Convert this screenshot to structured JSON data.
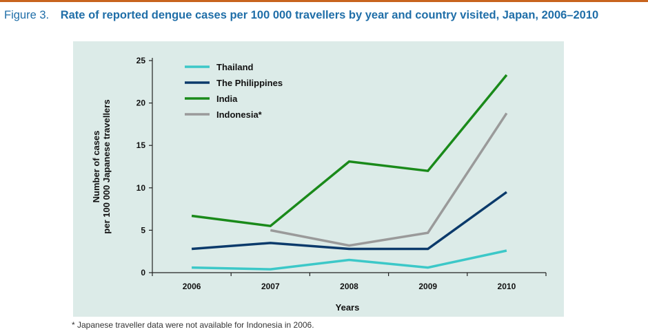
{
  "figure": {
    "label": "Figure 3.",
    "title": "Rate of reported dengue cases per 100 000 travellers by year and country visited, Japan, 2006–2010"
  },
  "footnote": "* Japanese traveller data were not available for Indonesia in 2006.",
  "colors": {
    "accent_rule": "#c8641e",
    "title": "#1f6ea8",
    "plot_background": "#dcebe8"
  },
  "chart_data": {
    "type": "line",
    "title": "Rate of reported dengue cases per 100 000 travellers by year and country visited, Japan, 2006–2010",
    "xlabel": "Years",
    "ylabel": [
      "Number of cases",
      "per 100 000 Japanese travellers"
    ],
    "categories": [
      "2006",
      "2007",
      "2008",
      "2009",
      "2010"
    ],
    "ylim": [
      0,
      25
    ],
    "yticks": [
      0,
      5,
      10,
      15,
      20,
      25
    ],
    "grid": false,
    "legend_position": "top-left",
    "series": [
      {
        "name": "Thailand",
        "color": "#3cc8c8",
        "values": [
          0.6,
          0.4,
          1.5,
          0.6,
          2.6
        ]
      },
      {
        "name": "The Philippines",
        "color": "#0b3a6b",
        "values": [
          2.8,
          3.5,
          2.8,
          2.8,
          9.5
        ]
      },
      {
        "name": "India",
        "color": "#1a8a1a",
        "values": [
          6.7,
          5.5,
          13.1,
          12.0,
          23.3
        ]
      },
      {
        "name": "Indonesia*",
        "color": "#9a9a9a",
        "values": [
          null,
          5.0,
          3.2,
          4.7,
          18.8
        ]
      }
    ]
  }
}
